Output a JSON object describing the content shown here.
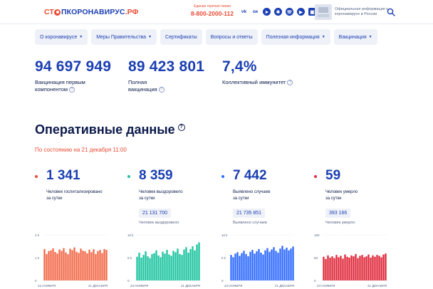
{
  "header": {
    "logo": {
      "stop": "СТ",
      "name": "ПКОРОНАВИРУС",
      "domain": ".РФ"
    },
    "hotline_caption": "Единая горячая линия",
    "hotline_number": "8-800-2000-112",
    "socials": [
      {
        "icon": "vk-icon",
        "glyph": "vk"
      },
      {
        "icon": "ok-icon",
        "glyph": "ок"
      },
      {
        "icon": "telegram-icon",
        "glyph": "➤"
      },
      {
        "icon": "messenger-icon",
        "glyph": "✱"
      },
      {
        "icon": "viber-icon",
        "glyph": "☏"
      },
      {
        "icon": "youtube-icon",
        "glyph": "▶"
      },
      {
        "icon": "app-icon",
        "glyph": "▣"
      }
    ],
    "official_text": "Официальная информация о коронавирусе в России"
  },
  "nav": [
    {
      "label": "О коронавирусе",
      "has_caret": true
    },
    {
      "label": "Меры Правительства",
      "has_caret": true
    },
    {
      "label": "Сертификаты",
      "has_caret": false
    },
    {
      "label": "Вопросы и ответы",
      "has_caret": false
    },
    {
      "label": "Полезная информация",
      "has_caret": true
    },
    {
      "label": "Вакцинация",
      "has_caret": true
    }
  ],
  "big_stats": [
    {
      "value": "94 697 949",
      "label_line1": "Вакцинация первым",
      "label_line2": "компонентом"
    },
    {
      "value": "89 423 801",
      "label_line1": "Полная",
      "label_line2": "вакцинация"
    },
    {
      "value": "7,4%",
      "label_line1": "Коллективный иммунитет",
      "label_line2": ""
    }
  ],
  "operational": {
    "title": "Оперативные данные",
    "date": "По состоянию на 21 декабря 11:00"
  },
  "cards": [
    {
      "number": "1 341",
      "desc_line1": "Человек госпитализировано",
      "desc_line2": "за сутки",
      "badge": "",
      "sub": "",
      "color": "#f26b4b",
      "dot": "#e94b35"
    },
    {
      "number": "8 359",
      "desc_line1": "Человек выздоровело",
      "desc_line2": "за сутки",
      "badge": "21 131 700",
      "sub": "Человек выздоровело",
      "color": "#1ec4a0",
      "dot": "#1ec4a0"
    },
    {
      "number": "7 442",
      "desc_line1": "Выявлено случаев",
      "desc_line2": "за сутки",
      "badge": "21 735 851",
      "sub": "Выявлено случаев",
      "color": "#2f6bff",
      "dot": "#2f6bff"
    },
    {
      "number": "59",
      "desc_line1": "Человек умерло",
      "desc_line2": "за сутки",
      "badge": "393 166",
      "sub": "Человек умерло",
      "color": "#e02a3b",
      "dot": "#e02a3b"
    }
  ],
  "chart_data": [
    {
      "type": "bar",
      "series_name": "Человек госпитализировано за сутки",
      "y_ticks": [
        "2 k",
        "1 k",
        "0"
      ],
      "ylim": [
        0,
        2000
      ],
      "x_start_label": "22 НОЯБРЯ",
      "x_end_label": "21 ДЕКАБРЯ",
      "values": [
        1380,
        1160,
        1290,
        1320,
        1410,
        1250,
        1180,
        1360,
        1300,
        1420,
        1230,
        1150,
        1390,
        1330,
        1450,
        1260,
        1210,
        1400,
        1310,
        1280,
        1190,
        1350,
        1240,
        1370,
        1160,
        1290,
        1340,
        1200,
        1380,
        1341
      ]
    },
    {
      "type": "bar",
      "series_name": "Человек выздоровело за сутки",
      "y_ticks": [
        "10 k",
        "5 k",
        "0"
      ],
      "ylim": [
        0,
        10000
      ],
      "x_start_label": "23 НОЯБРЯ",
      "x_end_label": "21 ДЕКАБРЯ",
      "values": [
        5200,
        6100,
        5000,
        5600,
        6400,
        5300,
        4900,
        5800,
        6000,
        6600,
        5500,
        5100,
        6300,
        5900,
        6700,
        5700,
        5400,
        6500,
        6200,
        7000,
        5800,
        5600,
        6800,
        7300,
        6100,
        6900,
        7500,
        6600,
        7900,
        8359
      ]
    },
    {
      "type": "bar",
      "series_name": "Выявлено случаев за сутки",
      "y_ticks": [
        "10 k",
        "5 k",
        "0"
      ],
      "ylim": [
        0,
        10000
      ],
      "x_start_label": "23 НОЯБРЯ",
      "x_end_label": "21 ДЕКАБРЯ",
      "values": [
        5600,
        5100,
        5900,
        6200,
        5400,
        6000,
        6500,
        5800,
        5300,
        6300,
        6700,
        5900,
        6400,
        6900,
        6100,
        5700,
        6600,
        7100,
        6300,
        6800,
        7300,
        6500,
        6100,
        7000,
        7600,
        6800,
        7200,
        6600,
        7000,
        7442
      ]
    },
    {
      "type": "bar",
      "series_name": "Человек умерло за сутки",
      "y_ticks": [
        "100",
        "50",
        "0"
      ],
      "ylim": [
        0,
        100
      ],
      "x_start_label": "23 НОЯБРЯ",
      "x_end_label": "21 ДЕКАБРЯ",
      "values": [
        52,
        47,
        55,
        50,
        53,
        49,
        56,
        51,
        54,
        48,
        57,
        52,
        50,
        55,
        53,
        58,
        49,
        54,
        56,
        51,
        53,
        57,
        50,
        55,
        52,
        56,
        54,
        51,
        57,
        59
      ]
    }
  ]
}
